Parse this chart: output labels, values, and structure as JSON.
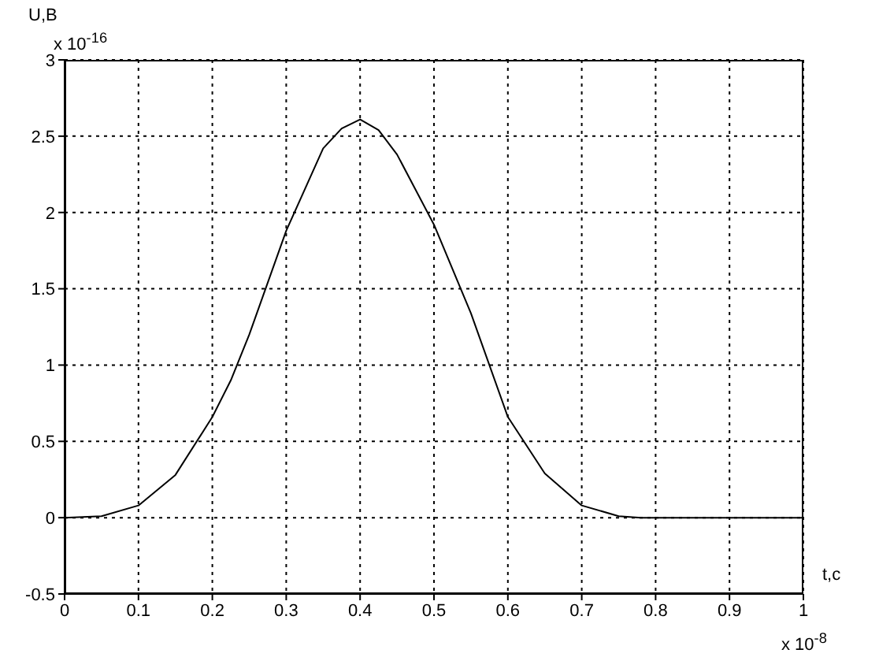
{
  "chart_data": {
    "type": "line",
    "ylabel": "U,B",
    "xlabel": "t,c",
    "annotations": [
      "x 10$^{-16}$",
      "x 10$^{-8}$"
    ],
    "x": [
      0,
      0.05,
      0.1,
      0.15,
      0.2,
      0.225,
      0.25,
      0.3,
      0.35,
      0.375,
      0.4,
      0.425,
      0.45,
      0.5,
      0.55,
      0.6,
      0.65,
      0.7,
      0.75,
      0.78,
      0.8,
      0.9,
      1
    ],
    "series": [
      {
        "color": "#000000",
        "values": [
          0,
          0.01,
          0.08,
          0.28,
          0.66,
          0.9,
          1.2,
          1.88,
          2.42,
          2.55,
          2.61,
          2.54,
          2.38,
          1.92,
          1.34,
          0.66,
          0.29,
          0.08,
          0.01,
          0,
          0,
          0,
          0
        ]
      }
    ],
    "xlim": [
      0,
      1
    ],
    "xticks": [
      0,
      0.1,
      0.2,
      0.3,
      0.4,
      0.5,
      0.6,
      0.7,
      0.8,
      0.9,
      1
    ],
    "ylim": [
      -0.5,
      3
    ],
    "yticks": [
      -0.5,
      0,
      0.5,
      1,
      1.5,
      2,
      2.5,
      3
    ],
    "grid": true,
    "marker": "none",
    "line_style": "solid",
    "legend": false
  }
}
